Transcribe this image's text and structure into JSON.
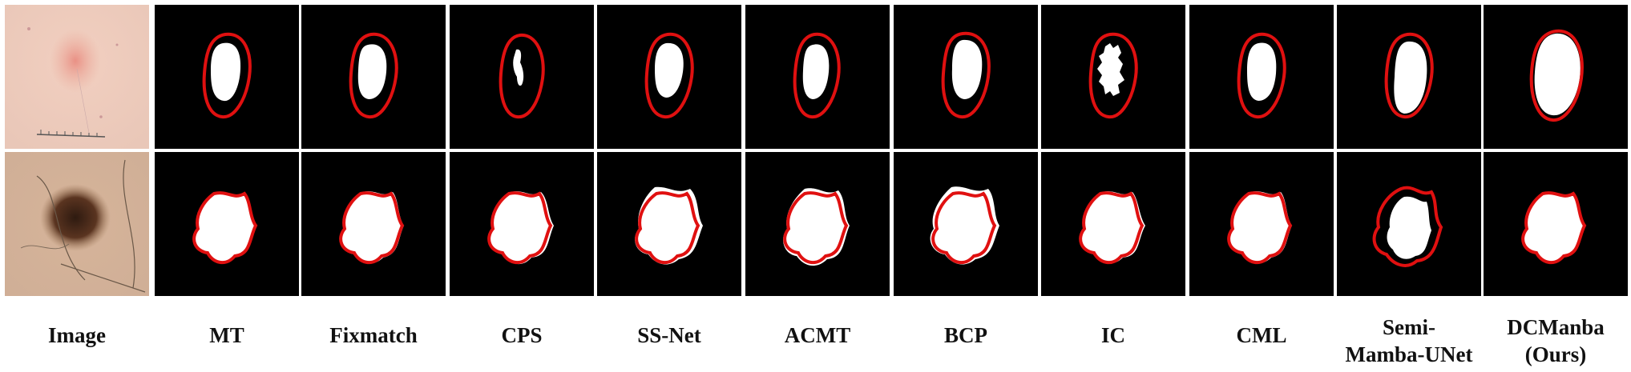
{
  "columns": [
    {
      "key": "image",
      "label": "Image"
    },
    {
      "key": "mt",
      "label": "MT"
    },
    {
      "key": "fixmatch",
      "label": "Fixmatch"
    },
    {
      "key": "cps",
      "label": "CPS"
    },
    {
      "key": "ssnet",
      "label": "SS-Net"
    },
    {
      "key": "acmt",
      "label": "ACMT"
    },
    {
      "key": "bcp",
      "label": "BCP"
    },
    {
      "key": "ic",
      "label": "IC"
    },
    {
      "key": "cml",
      "label": "CML"
    },
    {
      "key": "semi",
      "label": "Semi-",
      "label2": "Mamba-UNet"
    },
    {
      "key": "dcmanba",
      "label": "DCManba",
      "label2": "(Ours)"
    }
  ],
  "colors": {
    "background_tile": "#000000",
    "prediction": "#ffffff",
    "ground_truth_contour": "#e01010"
  }
}
